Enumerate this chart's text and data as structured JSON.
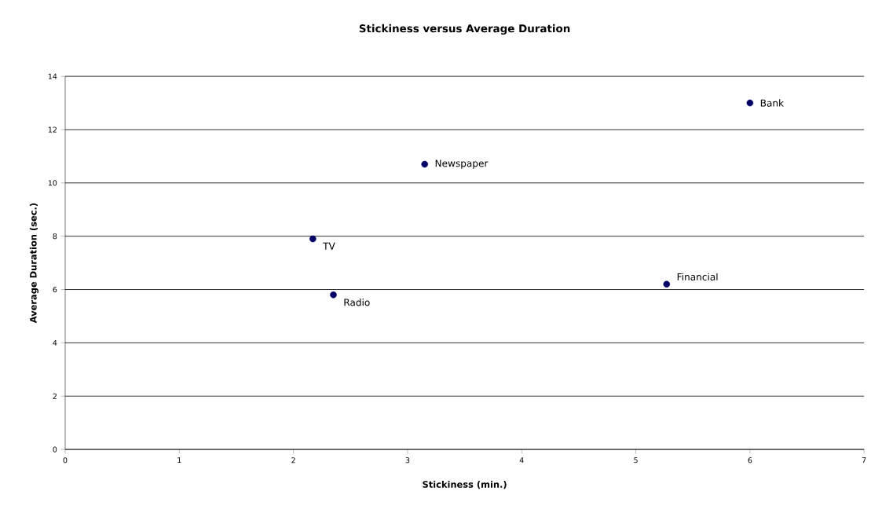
{
  "chart_data": {
    "type": "scatter",
    "title": "Stickiness versus Average Duration",
    "xlabel": "Stickiness (min.)",
    "ylabel": "Average Duration (sec.)",
    "x": [
      6.0,
      3.15,
      2.17,
      2.35,
      5.27
    ],
    "values": [
      13.0,
      10.7,
      7.9,
      5.8,
      6.2
    ],
    "color": "#000066",
    "grid": "y",
    "xlim": [
      0,
      7
    ],
    "xticks": [
      0,
      1,
      2,
      3,
      4,
      5,
      6,
      7
    ],
    "ylim": [
      0,
      14
    ],
    "yticks": [
      0,
      2,
      4,
      6,
      8,
      10,
      12,
      14
    ],
    "annotations": [
      {
        "text": "Bank",
        "x": 6.0,
        "y": 13.0
      },
      {
        "text": "Newspaper",
        "x": 3.15,
        "y": 10.7
      },
      {
        "text": "TV",
        "x": 2.17,
        "y": 7.9
      },
      {
        "text": "Radio",
        "x": 2.35,
        "y": 5.8
      },
      {
        "text": "Financial",
        "x": 5.27,
        "y": 6.2
      }
    ]
  }
}
